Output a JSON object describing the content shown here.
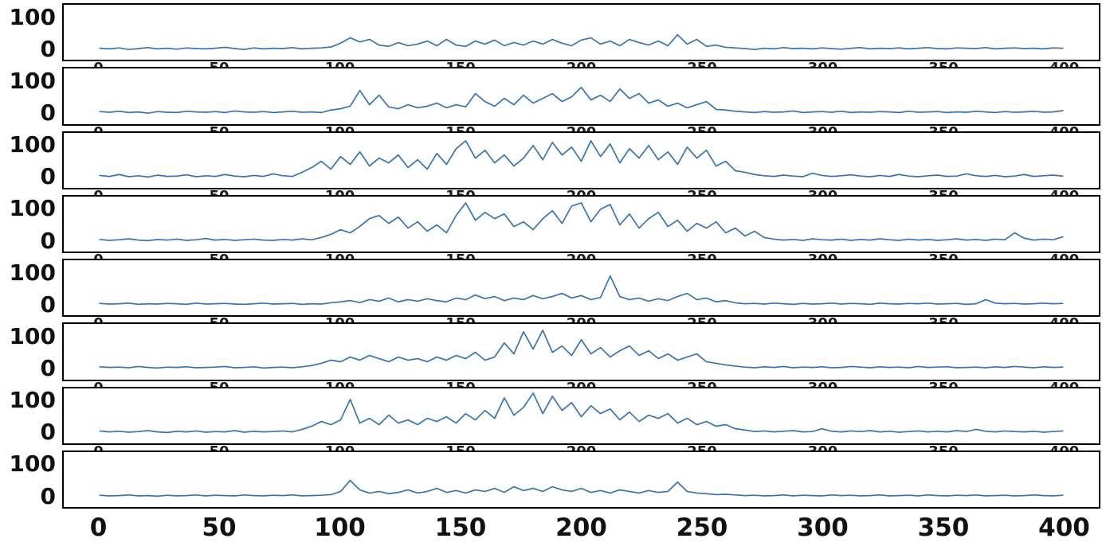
{
  "chart_data": {
    "type": "line",
    "title": "",
    "layout": "8 vertically stacked subplots sharing one x-axis",
    "line_color": "#3a74ae",
    "x_start": 0,
    "x_step": 4,
    "xlim": [
      -15,
      415
    ],
    "ylim": [
      -35,
      140
    ],
    "x_ticks": [
      0,
      50,
      100,
      150,
      200,
      250,
      300,
      350,
      400
    ],
    "y_ticks": [
      100,
      0
    ],
    "grid": false,
    "legend": false,
    "series": [
      {
        "name": "subplot-1",
        "values": [
          2,
          0,
          3,
          -2,
          1,
          4,
          0,
          2,
          -1,
          3,
          1,
          0,
          2,
          5,
          1,
          -2,
          3,
          0,
          2,
          1,
          4,
          0,
          2,
          3,
          6,
          18,
          35,
          22,
          30,
          12,
          8,
          20,
          10,
          15,
          25,
          10,
          30,
          12,
          8,
          25,
          15,
          28,
          10,
          20,
          12,
          25,
          15,
          30,
          18,
          10,
          28,
          35,
          15,
          25,
          10,
          30,
          20,
          12,
          25,
          10,
          45,
          15,
          30,
          8,
          12,
          5,
          3,
          1,
          -2,
          2,
          0,
          4,
          1,
          2,
          0,
          3,
          1,
          -1,
          2,
          4,
          0,
          2,
          1,
          3,
          0,
          2,
          4,
          1,
          0,
          3,
          2,
          1,
          4,
          0,
          2,
          3,
          1,
          2,
          0,
          3,
          2
        ]
      },
      {
        "name": "subplot-2",
        "values": [
          3,
          1,
          4,
          0,
          2,
          -2,
          3,
          1,
          0,
          4,
          2,
          1,
          3,
          0,
          5,
          2,
          1,
          3,
          0,
          2,
          4,
          1,
          2,
          0,
          8,
          12,
          20,
          70,
          25,
          55,
          18,
          12,
          25,
          15,
          20,
          30,
          15,
          25,
          18,
          60,
          35,
          20,
          45,
          25,
          55,
          30,
          45,
          60,
          35,
          50,
          80,
          40,
          55,
          35,
          75,
          45,
          60,
          30,
          40,
          20,
          30,
          15,
          25,
          35,
          10,
          8,
          4,
          2,
          0,
          3,
          1,
          2,
          5,
          0,
          2,
          3,
          1,
          4,
          0,
          2,
          1,
          3,
          2,
          0,
          4,
          1,
          2,
          3,
          0,
          2,
          1,
          4,
          2,
          0,
          3,
          1,
          2,
          4,
          1,
          2,
          6
        ]
      },
      {
        "name": "subplot-3",
        "values": [
          5,
          2,
          8,
          1,
          4,
          0,
          6,
          2,
          3,
          7,
          1,
          4,
          2,
          8,
          3,
          1,
          5,
          2,
          10,
          4,
          2,
          15,
          30,
          50,
          25,
          65,
          40,
          80,
          35,
          60,
          45,
          70,
          30,
          55,
          25,
          75,
          40,
          90,
          115,
          60,
          85,
          45,
          70,
          35,
          60,
          100,
          55,
          110,
          70,
          95,
          50,
          115,
          65,
          105,
          45,
          90,
          60,
          100,
          55,
          80,
          40,
          95,
          60,
          85,
          35,
          50,
          20,
          15,
          8,
          4,
          2,
          6,
          3,
          1,
          12,
          5,
          2,
          4,
          7,
          3,
          1,
          5,
          2,
          8,
          3,
          1,
          4,
          6,
          2,
          3,
          10,
          4,
          2,
          5,
          1,
          3,
          8,
          2,
          4,
          6,
          3
        ]
      },
      {
        "name": "subplot-4",
        "values": [
          4,
          1,
          3,
          6,
          2,
          0,
          4,
          2,
          5,
          1,
          3,
          7,
          2,
          4,
          1,
          3,
          5,
          2,
          1,
          4,
          2,
          6,
          3,
          10,
          20,
          35,
          25,
          45,
          70,
          80,
          55,
          75,
          40,
          60,
          30,
          50,
          25,
          80,
          120,
          65,
          90,
          70,
          85,
          45,
          60,
          35,
          70,
          95,
          55,
          110,
          120,
          60,
          100,
          115,
          50,
          85,
          40,
          70,
          90,
          45,
          65,
          30,
          55,
          40,
          60,
          25,
          40,
          15,
          30,
          10,
          5,
          2,
          4,
          1,
          6,
          3,
          2,
          5,
          1,
          4,
          2,
          6,
          3,
          1,
          5,
          2,
          4,
          1,
          3,
          6,
          2,
          4,
          1,
          5,
          3,
          25,
          8,
          2,
          5,
          3,
          12
        ]
      },
      {
        "name": "subplot-5",
        "values": [
          3,
          1,
          2,
          4,
          0,
          2,
          1,
          3,
          2,
          0,
          4,
          1,
          2,
          3,
          1,
          0,
          2,
          4,
          1,
          2,
          3,
          0,
          2,
          1,
          5,
          8,
          12,
          6,
          15,
          10,
          20,
          8,
          15,
          10,
          18,
          12,
          8,
          20,
          15,
          30,
          18,
          25,
          12,
          20,
          15,
          28,
          18,
          25,
          35,
          20,
          28,
          15,
          22,
          90,
          25,
          15,
          20,
          10,
          18,
          12,
          25,
          35,
          15,
          20,
          8,
          12,
          5,
          2,
          3,
          1,
          4,
          2,
          0,
          3,
          1,
          2,
          4,
          1,
          3,
          2,
          0,
          4,
          2,
          1,
          3,
          2,
          4,
          1,
          2,
          3,
          0,
          2,
          15,
          4,
          2,
          3,
          1,
          2,
          4,
          2,
          3
        ]
      },
      {
        "name": "subplot-6",
        "values": [
          4,
          2,
          3,
          1,
          5,
          2,
          0,
          3,
          2,
          4,
          1,
          2,
          3,
          5,
          1,
          2,
          4,
          0,
          2,
          3,
          1,
          4,
          8,
          15,
          25,
          20,
          35,
          25,
          40,
          30,
          20,
          35,
          25,
          30,
          20,
          35,
          25,
          40,
          30,
          50,
          25,
          35,
          80,
          45,
          115,
          60,
          120,
          50,
          70,
          40,
          90,
          45,
          65,
          35,
          55,
          70,
          40,
          55,
          30,
          45,
          25,
          35,
          45,
          20,
          15,
          10,
          6,
          3,
          1,
          4,
          2,
          5,
          1,
          3,
          2,
          4,
          1,
          2,
          5,
          3,
          1,
          4,
          2,
          3,
          1,
          5,
          2,
          3,
          4,
          1,
          2,
          3,
          1,
          4,
          2,
          5,
          3,
          1,
          4,
          2,
          3
        ]
      },
      {
        "name": "subplot-7",
        "values": [
          5,
          2,
          4,
          1,
          3,
          6,
          2,
          0,
          4,
          2,
          5,
          1,
          3,
          2,
          6,
          1,
          4,
          2,
          3,
          5,
          2,
          10,
          20,
          35,
          25,
          40,
          105,
          30,
          45,
          25,
          55,
          30,
          40,
          25,
          45,
          35,
          50,
          30,
          60,
          40,
          70,
          45,
          110,
          55,
          80,
          125,
          60,
          115,
          70,
          95,
          50,
          85,
          60,
          75,
          40,
          65,
          35,
          55,
          45,
          60,
          30,
          45,
          25,
          35,
          20,
          25,
          12,
          8,
          3,
          5,
          2,
          4,
          6,
          2,
          3,
          12,
          4,
          2,
          5,
          3,
          6,
          2,
          4,
          1,
          3,
          5,
          2,
          4,
          2,
          6,
          3,
          10,
          4,
          2,
          5,
          3,
          2,
          4,
          1,
          3,
          5
        ]
      },
      {
        "name": "subplot-8",
        "values": [
          3,
          1,
          2,
          4,
          1,
          2,
          0,
          3,
          1,
          2,
          4,
          1,
          3,
          2,
          1,
          4,
          2,
          1,
          3,
          2,
          4,
          1,
          2,
          3,
          5,
          15,
          50,
          20,
          10,
          15,
          8,
          12,
          20,
          10,
          15,
          25,
          12,
          18,
          10,
          20,
          15,
          25,
          12,
          30,
          18,
          25,
          15,
          30,
          20,
          15,
          25,
          12,
          18,
          10,
          20,
          15,
          10,
          18,
          12,
          15,
          45,
          15,
          10,
          8,
          5,
          6,
          4,
          2,
          3,
          1,
          2,
          4,
          1,
          3,
          2,
          1,
          4,
          2,
          3,
          1,
          2,
          4,
          1,
          2,
          3,
          1,
          4,
          2,
          1,
          3,
          2,
          4,
          1,
          2,
          3,
          1,
          2,
          4,
          2,
          1,
          3
        ]
      }
    ]
  },
  "axes": {
    "y_tick_labels": [
      "100",
      "0"
    ],
    "x_tick_labels": [
      "0",
      "50",
      "100",
      "150",
      "200",
      "250",
      "300",
      "350",
      "400"
    ]
  }
}
